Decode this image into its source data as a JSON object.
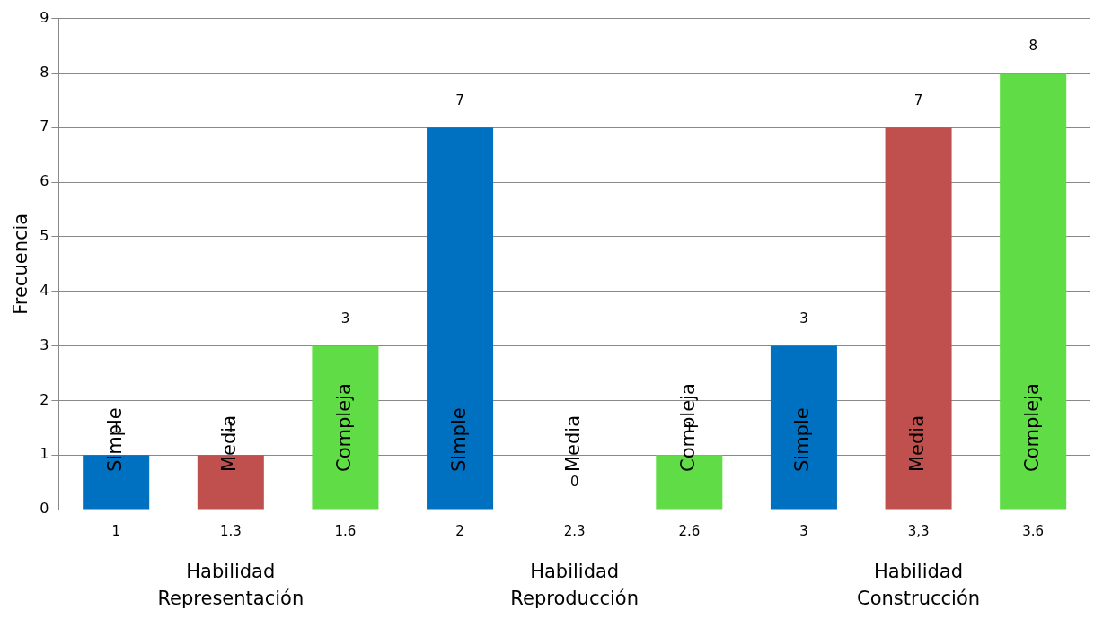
{
  "chart_data": {
    "type": "bar",
    "ylabel": "Frecuencia",
    "categories": [
      "1",
      "1.3",
      "1.6",
      "2",
      "2.3",
      "2.6",
      "3",
      "3,3",
      "3.6"
    ],
    "values": [
      1,
      1,
      3,
      7,
      0,
      1,
      3,
      7,
      8
    ],
    "colors": [
      "#0070c0",
      "#c0504d",
      "#5fdc46",
      "#0070c0",
      "#c0504d",
      "#5fdc46",
      "#0070c0",
      "#c0504d",
      "#5fdc46"
    ],
    "ylim": [
      0,
      9
    ],
    "yticks": [
      0,
      1,
      2,
      3,
      4,
      5,
      6,
      7,
      8,
      9
    ],
    "grid": "y",
    "legend": false,
    "data_labels": true,
    "annotations": [
      "Simple",
      "Media",
      "Compleja",
      "Simple",
      "Media",
      "Compleja",
      "Simple",
      "Media",
      "Compleja",
      "Habilidad Representación",
      "Habilidad Reproducción",
      "Habilidad Construcción"
    ]
  }
}
